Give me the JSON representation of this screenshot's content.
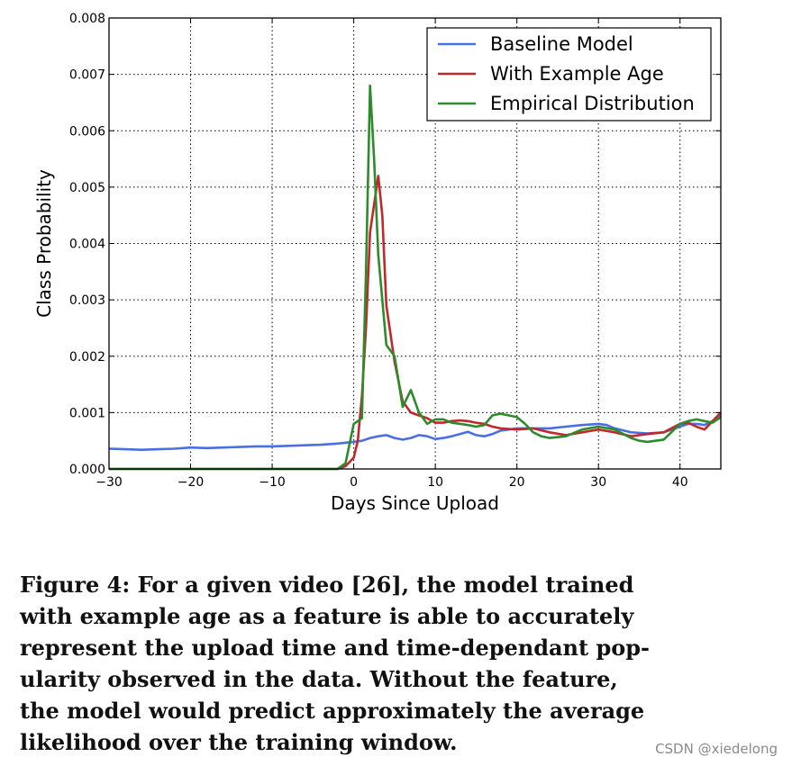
{
  "chart_data": {
    "type": "line",
    "xlabel": "Days Since Upload",
    "ylabel": "Class Probability",
    "xlim": [
      -30,
      45
    ],
    "ylim": [
      0,
      0.008
    ],
    "xticks": [
      -30,
      -20,
      -10,
      0,
      10,
      20,
      30,
      40
    ],
    "xtick_labels": [
      "−30",
      "−20",
      "−10",
      "0",
      "10",
      "20",
      "30",
      "40"
    ],
    "yticks": [
      0,
      0.001,
      0.002,
      0.003,
      0.004,
      0.005,
      0.006,
      0.007,
      0.008
    ],
    "ytick_labels": [
      "0.000",
      "0.001",
      "0.002",
      "0.003",
      "0.004",
      "0.005",
      "0.006",
      "0.007",
      "0.008"
    ],
    "grid": true,
    "legend_position": "top-right",
    "series": [
      {
        "name": "Baseline Model",
        "color": "#4a6fe3",
        "x": [
          -30,
          -28,
          -26,
          -24,
          -22,
          -20,
          -18,
          -16,
          -14,
          -12,
          -10,
          -8,
          -6,
          -4,
          -2,
          0,
          1,
          2,
          3,
          4,
          5,
          6,
          7,
          8,
          9,
          10,
          11,
          12,
          13,
          14,
          15,
          16,
          17,
          18,
          19,
          20,
          22,
          24,
          26,
          28,
          30,
          31,
          32,
          34,
          36,
          38,
          40,
          41,
          42,
          43,
          44,
          45
        ],
        "y": [
          0.00036,
          0.00035,
          0.00034,
          0.00035,
          0.00036,
          0.00038,
          0.00037,
          0.00038,
          0.00039,
          0.0004,
          0.0004,
          0.00041,
          0.00042,
          0.00043,
          0.00045,
          0.00048,
          0.0005,
          0.00055,
          0.00058,
          0.0006,
          0.00055,
          0.00052,
          0.00055,
          0.0006,
          0.00058,
          0.00053,
          0.00055,
          0.00058,
          0.00062,
          0.00066,
          0.0006,
          0.00058,
          0.00062,
          0.00068,
          0.0007,
          0.00072,
          0.00072,
          0.00072,
          0.00075,
          0.00078,
          0.0008,
          0.00078,
          0.00072,
          0.00065,
          0.00063,
          0.00065,
          0.00075,
          0.0008,
          0.0008,
          0.00078,
          0.00085,
          0.00095
        ]
      },
      {
        "name": "With Example Age",
        "color": "#c0292b",
        "x": [
          -30,
          -20,
          -10,
          -2,
          -1,
          0,
          0.5,
          1,
          1.5,
          2,
          3,
          3.5,
          4,
          5,
          6,
          7,
          8,
          9,
          10,
          11,
          12,
          13,
          14,
          15,
          16,
          17,
          18,
          20,
          22,
          24,
          26,
          28,
          30,
          32,
          34,
          36,
          38,
          40,
          41,
          42,
          43,
          44,
          45
        ],
        "y": [
          0,
          0,
          0,
          0,
          5e-05,
          0.0002,
          0.0005,
          0.0013,
          0.0025,
          0.0042,
          0.0052,
          0.0045,
          0.0029,
          0.0019,
          0.0012,
          0.001,
          0.00095,
          0.0009,
          0.00082,
          0.00082,
          0.00085,
          0.00086,
          0.00085,
          0.00082,
          0.0008,
          0.00075,
          0.00072,
          0.0007,
          0.00072,
          0.00065,
          0.0006,
          0.00065,
          0.0007,
          0.00065,
          0.00058,
          0.00062,
          0.00065,
          0.0008,
          0.00082,
          0.00075,
          0.0007,
          0.00085,
          0.001
        ]
      },
      {
        "name": "Empirical Distribution",
        "color": "#2c8c2c",
        "x": [
          -30,
          -20,
          -10,
          -2,
          -1,
          0,
          1,
          1.5,
          2,
          2.5,
          3,
          4,
          5,
          6,
          7,
          8,
          9,
          10,
          11,
          12,
          13,
          14,
          15,
          16,
          17,
          18,
          19,
          20,
          21,
          22,
          23,
          24,
          26,
          28,
          30,
          32,
          34,
          35,
          36,
          38,
          40,
          41,
          42,
          43,
          44,
          45
        ],
        "y": [
          0,
          0,
          0,
          0,
          0.0001,
          0.0008,
          0.0009,
          0.0035,
          0.0068,
          0.0055,
          0.0038,
          0.0022,
          0.002,
          0.0011,
          0.0014,
          0.001,
          0.0008,
          0.00088,
          0.00088,
          0.00082,
          0.0008,
          0.00078,
          0.00075,
          0.00078,
          0.00095,
          0.00098,
          0.00095,
          0.00092,
          0.0008,
          0.00065,
          0.00058,
          0.00055,
          0.00058,
          0.0007,
          0.00075,
          0.0007,
          0.00055,
          0.0005,
          0.00048,
          0.00052,
          0.0008,
          0.00085,
          0.00088,
          0.00085,
          0.00082,
          0.00092
        ]
      }
    ]
  },
  "caption": {
    "lines": [
      "Figure 4: For a given video [26], the model trained",
      "with example age as a feature is able to accurately",
      "represent the upload time and time-dependant pop-",
      "ularity observed in the data.  Without the feature,",
      "the model would predict approximately the average",
      "likelihood over the training window."
    ]
  },
  "watermark": "CSDN @xiedelong"
}
